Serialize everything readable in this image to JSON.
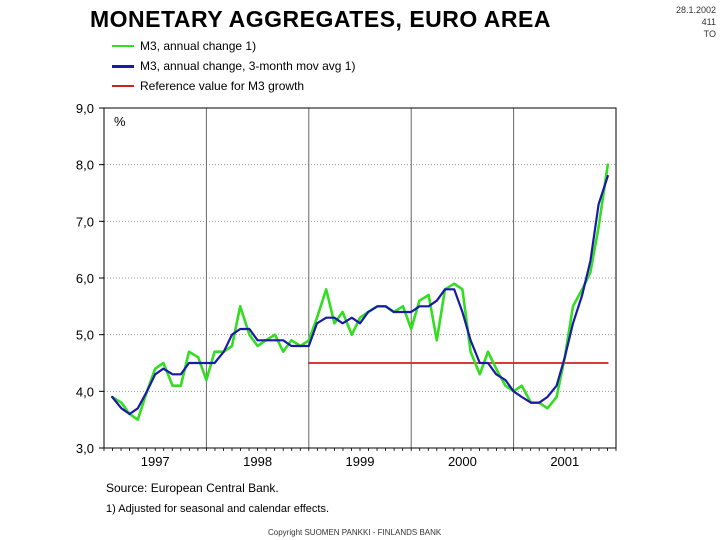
{
  "header": {
    "title": "MONETARY AGGREGATES, EURO AREA",
    "corner_lines": [
      "28.1.2002",
      "411",
      "TO"
    ]
  },
  "chart_data": {
    "type": "line",
    "title": "MONETARY AGGREGATES, EURO AREA",
    "ylabel": "%",
    "xlabel": "",
    "ylim": [
      3.0,
      9.0
    ],
    "xlim": [
      1996.5,
      2001.5
    ],
    "y_ticks": [
      "3,0",
      "4,0",
      "5,0",
      "6,0",
      "7,0",
      "8,0",
      "9,0"
    ],
    "x_ticks": [
      "1997",
      "1998",
      "1999",
      "2000",
      "2001"
    ],
    "grid": true,
    "legend_position": "top-left",
    "series": [
      {
        "name": "M3, annual change 1)",
        "color": "#33dd22",
        "x": [
          1996.58,
          1996.67,
          1996.75,
          1996.83,
          1996.92,
          1997.0,
          1997.08,
          1997.17,
          1997.25,
          1997.33,
          1997.42,
          1997.5,
          1997.58,
          1997.67,
          1997.75,
          1997.83,
          1997.92,
          1998.0,
          1998.08,
          1998.17,
          1998.25,
          1998.33,
          1998.42,
          1998.5,
          1998.58,
          1998.67,
          1998.75,
          1998.83,
          1998.92,
          1999.0,
          1999.08,
          1999.17,
          1999.25,
          1999.33,
          1999.42,
          1999.5,
          1999.58,
          1999.67,
          1999.75,
          1999.83,
          1999.92,
          2000.0,
          2000.08,
          2000.17,
          2000.25,
          2000.33,
          2000.42,
          2000.5,
          2000.58,
          2000.67,
          2000.75,
          2000.83,
          2000.92,
          2001.0,
          2001.08,
          2001.17,
          2001.25,
          2001.33,
          2001.42
        ],
        "values": [
          3.9,
          3.8,
          3.6,
          3.5,
          4.0,
          4.4,
          4.5,
          4.1,
          4.1,
          4.7,
          4.6,
          4.2,
          4.7,
          4.7,
          4.8,
          5.5,
          5.0,
          4.8,
          4.9,
          5.0,
          4.7,
          4.9,
          4.8,
          4.9,
          5.3,
          5.8,
          5.2,
          5.4,
          5.0,
          5.3,
          5.4,
          5.5,
          5.5,
          5.4,
          5.5,
          5.1,
          5.6,
          5.7,
          4.9,
          5.8,
          5.9,
          5.8,
          4.7,
          4.3,
          4.7,
          4.4,
          4.1,
          4.0,
          4.1,
          3.8,
          3.8,
          3.7,
          3.9,
          4.6,
          5.5,
          5.8,
          6.1,
          6.9,
          8.0
        ]
      },
      {
        "name": "M3, annual change, 3-month mov avg 1)",
        "color": "#1a1aa6",
        "x": [
          1996.58,
          1996.67,
          1996.75,
          1996.83,
          1996.92,
          1997.0,
          1997.08,
          1997.17,
          1997.25,
          1997.33,
          1997.42,
          1997.5,
          1997.58,
          1997.67,
          1997.75,
          1997.83,
          1997.92,
          1998.0,
          1998.08,
          1998.17,
          1998.25,
          1998.33,
          1998.42,
          1998.5,
          1998.58,
          1998.67,
          1998.75,
          1998.83,
          1998.92,
          1999.0,
          1999.08,
          1999.17,
          1999.25,
          1999.33,
          1999.42,
          1999.5,
          1999.58,
          1999.67,
          1999.75,
          1999.83,
          1999.92,
          2000.0,
          2000.08,
          2000.17,
          2000.25,
          2000.33,
          2000.42,
          2000.5,
          2000.58,
          2000.67,
          2000.75,
          2000.83,
          2000.92,
          2001.0,
          2001.08,
          2001.17,
          2001.25,
          2001.33,
          2001.42
        ],
        "values": [
          3.9,
          3.7,
          3.6,
          3.7,
          4.0,
          4.3,
          4.4,
          4.3,
          4.3,
          4.5,
          4.5,
          4.5,
          4.5,
          4.7,
          5.0,
          5.1,
          5.1,
          4.9,
          4.9,
          4.9,
          4.9,
          4.8,
          4.8,
          4.8,
          5.2,
          5.3,
          5.3,
          5.2,
          5.3,
          5.2,
          5.4,
          5.5,
          5.5,
          5.4,
          5.4,
          5.4,
          5.5,
          5.5,
          5.6,
          5.8,
          5.8,
          5.4,
          4.9,
          4.5,
          4.5,
          4.3,
          4.2,
          4.0,
          3.9,
          3.8,
          3.8,
          3.9,
          4.1,
          4.6,
          5.2,
          5.7,
          6.3,
          7.3,
          7.8
        ]
      },
      {
        "name": "Reference value for M3 growth",
        "color": "#cc2222",
        "x": [
          1998.5,
          2001.42
        ],
        "values": [
          4.5,
          4.5
        ]
      }
    ]
  },
  "footer": {
    "source": "Source: European Central Bank.",
    "footnote": "1) Adjusted for seasonal and calendar effects.",
    "copyright": "Copyright SUOMEN PANKKI - FINLANDS BANK"
  }
}
